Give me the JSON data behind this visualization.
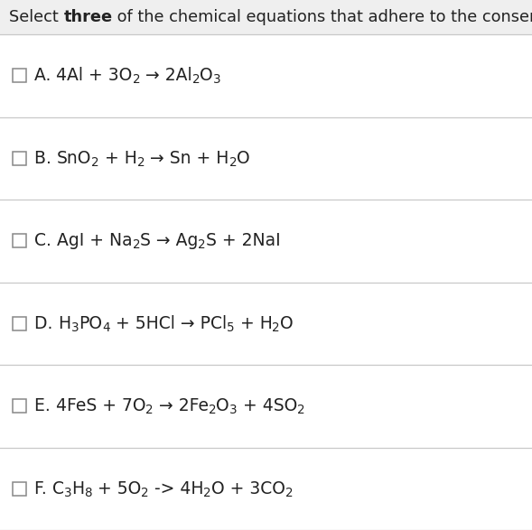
{
  "background_color": "#efefef",
  "row_bg_color": "#ffffff",
  "separator_color": "#c8c8c8",
  "text_color": "#222222",
  "checkbox_color": "#888888",
  "font_size": 13.5,
  "title_font_size": 12.8,
  "options": [
    {
      "label": "A.",
      "equation": [
        {
          "t": "4Al + 3O",
          "s": 0
        },
        {
          "t": "2",
          "s": -1
        },
        {
          "t": " → 2Al",
          "s": 0
        },
        {
          "t": "2",
          "s": -1
        },
        {
          "t": "O",
          "s": 0
        },
        {
          "t": "3",
          "s": -1
        }
      ]
    },
    {
      "label": "B.",
      "equation": [
        {
          "t": "SnO",
          "s": 0
        },
        {
          "t": "2",
          "s": -1
        },
        {
          "t": " + H",
          "s": 0
        },
        {
          "t": "2",
          "s": -1
        },
        {
          "t": " → Sn + H",
          "s": 0
        },
        {
          "t": "2",
          "s": -1
        },
        {
          "t": "O",
          "s": 0
        }
      ]
    },
    {
      "label": "C.",
      "equation": [
        {
          "t": "AgI + Na",
          "s": 0
        },
        {
          "t": "2",
          "s": -1
        },
        {
          "t": "S → Ag",
          "s": 0
        },
        {
          "t": "2",
          "s": -1
        },
        {
          "t": "S + 2NaI",
          "s": 0
        }
      ]
    },
    {
      "label": "D.",
      "equation": [
        {
          "t": "H",
          "s": 0
        },
        {
          "t": "3",
          "s": -1
        },
        {
          "t": "PO",
          "s": 0
        },
        {
          "t": "4",
          "s": -1
        },
        {
          "t": " + 5HCl → PCl",
          "s": 0
        },
        {
          "t": "5",
          "s": -1
        },
        {
          "t": " + H",
          "s": 0
        },
        {
          "t": "2",
          "s": -1
        },
        {
          "t": "O",
          "s": 0
        }
      ]
    },
    {
      "label": "E.",
      "equation": [
        {
          "t": "4FeS + 7O",
          "s": 0
        },
        {
          "t": "2",
          "s": -1
        },
        {
          "t": " → 2Fe",
          "s": 0
        },
        {
          "t": "2",
          "s": -1
        },
        {
          "t": "O",
          "s": 0
        },
        {
          "t": "3",
          "s": -1
        },
        {
          "t": " + 4SO",
          "s": 0
        },
        {
          "t": "2",
          "s": -1
        }
      ]
    },
    {
      "label": "F.",
      "equation": [
        {
          "t": "C",
          "s": 0
        },
        {
          "t": "3",
          "s": -1
        },
        {
          "t": "H",
          "s": 0
        },
        {
          "t": "8",
          "s": -1
        },
        {
          "t": " + 5O",
          "s": 0
        },
        {
          "t": "2",
          "s": -1
        },
        {
          "t": " -> 4H",
          "s": 0
        },
        {
          "t": "2",
          "s": -1
        },
        {
          "t": "O + 3CO",
          "s": 0
        },
        {
          "t": "2",
          "s": -1
        }
      ]
    }
  ]
}
